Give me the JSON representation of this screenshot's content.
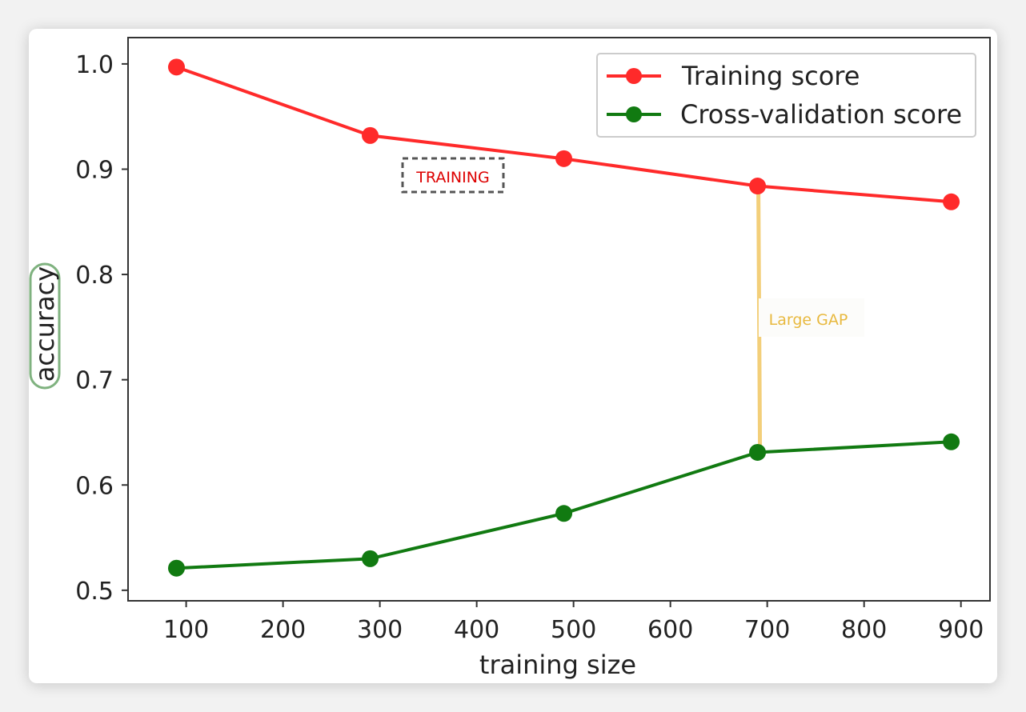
{
  "chart_data": {
    "type": "line",
    "xlabel": "training size",
    "ylabel": "accuracy",
    "x": [
      90,
      290,
      490,
      690,
      890
    ],
    "xticks": [
      100,
      200,
      300,
      400,
      500,
      600,
      700,
      800,
      900
    ],
    "yticks": [
      "0.5",
      "0.6",
      "0.7",
      "0.8",
      "0.9",
      "1.0"
    ],
    "yticks_values": [
      0.5,
      0.6,
      0.7,
      0.8,
      0.9,
      1.0
    ],
    "xlim": [
      40,
      930
    ],
    "ylim": [
      0.49,
      1.025
    ],
    "grid": false,
    "legend_position": "top-right",
    "series": [
      {
        "name": "Training score",
        "color": "#ff2a2a",
        "values": [
          0.997,
          0.932,
          0.91,
          0.884,
          0.869
        ]
      },
      {
        "name": "Cross-validation score",
        "color": "#117a11",
        "values": [
          0.521,
          0.53,
          0.573,
          0.631,
          0.641
        ]
      }
    ],
    "annotations": [
      {
        "text": "TRAINING",
        "color": "#dd0000"
      },
      {
        "text": "Large GAP",
        "color": "#e8b93f"
      }
    ]
  }
}
